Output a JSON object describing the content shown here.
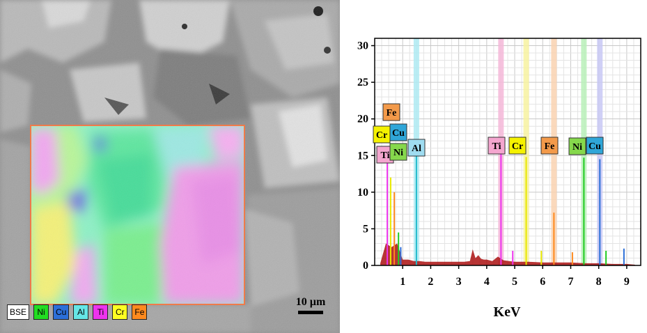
{
  "sem_image": {
    "legend": [
      {
        "label": "BSE",
        "color": "#ffffff"
      },
      {
        "label": "Ni",
        "color": "#22dd22"
      },
      {
        "label": "Cu",
        "color": "#2c6fd8"
      },
      {
        "label": "Al",
        "color": "#66e6e6"
      },
      {
        "label": "Ti",
        "color": "#ee33ee"
      },
      {
        "label": "Cr",
        "color": "#ffff22"
      },
      {
        "label": "Fe",
        "color": "#ff8a1e"
      }
    ],
    "scale_bar": "10 µm"
  },
  "chart_data": {
    "type": "line",
    "title": "",
    "xlabel": "KeV",
    "ylabel": "",
    "xlim": [
      0,
      9.5
    ],
    "ylim": [
      0,
      31
    ],
    "x_ticks": [
      1,
      2,
      3,
      4,
      5,
      6,
      7,
      8,
      9
    ],
    "y_ticks": [
      0,
      5,
      10,
      15,
      20,
      25,
      30
    ],
    "grid": true,
    "element_lines": [
      {
        "element": "Al",
        "energy": 1.49,
        "color": "#aeeaf2"
      },
      {
        "element": "Ti",
        "energy": 4.51,
        "color": "#f5b7d8"
      },
      {
        "element": "Cr",
        "energy": 5.41,
        "color": "#f7f2a0"
      },
      {
        "element": "Fe",
        "energy": 6.4,
        "color": "#f9d2b0"
      },
      {
        "element": "Ni",
        "energy": 7.47,
        "color": "#b8f0b8"
      },
      {
        "element": "Cu",
        "energy": 8.04,
        "color": "#c8c8f5"
      }
    ],
    "peaks": [
      {
        "element": "Ti",
        "energy": 0.45,
        "height": 15.0,
        "color": "#ee33ee"
      },
      {
        "element": "Cr",
        "energy": 0.57,
        "height": 12.0,
        "color": "#e8e800"
      },
      {
        "element": "Fe",
        "energy": 0.7,
        "height": 10.0,
        "color": "#ff8a1e"
      },
      {
        "element": "Ni",
        "energy": 0.85,
        "height": 4.5,
        "color": "#22cc22"
      },
      {
        "element": "Cu",
        "energy": 0.93,
        "height": 2.5,
        "color": "#2c6fd8"
      },
      {
        "element": "Al",
        "energy": 1.49,
        "height": 15.5,
        "color": "#22bbcc"
      },
      {
        "element": "Ti",
        "energy": 4.51,
        "height": 15.2,
        "color": "#ee33ee"
      },
      {
        "element": "Ti",
        "energy": 4.93,
        "height": 2.0,
        "color": "#ee33ee"
      },
      {
        "element": "Cr",
        "energy": 5.41,
        "height": 14.8,
        "color": "#e8e800"
      },
      {
        "element": "Cr",
        "energy": 5.95,
        "height": 2.0,
        "color": "#e8e800"
      },
      {
        "element": "Fe",
        "energy": 6.4,
        "height": 7.2,
        "color": "#ff8a1e"
      },
      {
        "element": "Fe",
        "energy": 7.06,
        "height": 1.8,
        "color": "#ff8a1e"
      },
      {
        "element": "Ni",
        "energy": 7.47,
        "height": 14.7,
        "color": "#22cc22"
      },
      {
        "element": "Ni",
        "energy": 8.26,
        "height": 2.0,
        "color": "#22cc22"
      },
      {
        "element": "Cu",
        "energy": 8.04,
        "height": 14.5,
        "color": "#2c6fd8"
      },
      {
        "element": "Cu",
        "energy": 8.9,
        "height": 2.3,
        "color": "#2c6fd8"
      }
    ],
    "background_spectrum": {
      "color": "#aa1111",
      "x": [
        0.2,
        0.4,
        0.6,
        0.8,
        1.0,
        1.2,
        1.4,
        1.6,
        1.8,
        2.0,
        2.5,
        3.0,
        3.2,
        3.4,
        3.5,
        3.6,
        3.7,
        3.8,
        3.9,
        4.0,
        4.2,
        4.4,
        4.6,
        4.8,
        5.0,
        5.2,
        5.5,
        6.0,
        6.5,
        7.0,
        7.5,
        8.0,
        8.5,
        9.0,
        9.3
      ],
      "y": [
        0.3,
        3.0,
        2.5,
        3.0,
        0.8,
        0.8,
        0.6,
        0.6,
        0.5,
        0.5,
        0.5,
        0.5,
        0.5,
        0.6,
        2.2,
        1.0,
        1.4,
        0.9,
        0.8,
        0.8,
        0.6,
        1.2,
        0.7,
        0.6,
        0.5,
        0.5,
        0.5,
        0.4,
        0.4,
        0.4,
        0.3,
        0.3,
        0.2,
        0.2,
        0.1
      ]
    },
    "labels": [
      {
        "text": "Fe",
        "color": "#f39a4a"
      },
      {
        "text": "Cr",
        "color": "#f5f200"
      },
      {
        "text": "Cu",
        "color": "#2fa6d8"
      },
      {
        "text": "Ti",
        "color": "#f4a6cf"
      },
      {
        "text": "Ni",
        "color": "#86d84c"
      },
      {
        "text": "Al",
        "color": "#9fdcf0"
      },
      {
        "text": "Ti",
        "color": "#f4a6cf"
      },
      {
        "text": "Cr",
        "color": "#f5f200"
      },
      {
        "text": "Fe",
        "color": "#f39a4a"
      },
      {
        "text": "Ni",
        "color": "#86d84c"
      },
      {
        "text": "Cu",
        "color": "#2fa6d8"
      }
    ]
  }
}
